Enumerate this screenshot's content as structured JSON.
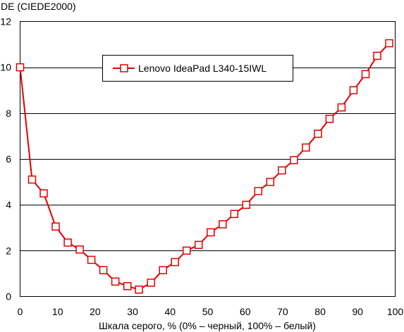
{
  "chart_data": {
    "type": "line",
    "title": "",
    "ylabel": "DE (CIEDE2000)",
    "xlabel": "Шкала серого, % (0% – черный, 100% – белый)",
    "xlim": [
      0,
      100
    ],
    "ylim": [
      0,
      12
    ],
    "xticks": [
      0,
      10,
      20,
      30,
      40,
      50,
      60,
      70,
      80,
      90,
      100
    ],
    "yticks": [
      0,
      2,
      4,
      6,
      8,
      10,
      12
    ],
    "grid": "horizontal",
    "legend_position": "top-center",
    "series": [
      {
        "name": "Lenovo IdeaPad L340-15IWL",
        "color": "#e00000",
        "marker": "square",
        "x": [
          0,
          3.2,
          6.3,
          9.5,
          12.7,
          15.9,
          19.0,
          22.2,
          25.4,
          28.6,
          31.7,
          34.9,
          38.1,
          41.3,
          44.4,
          47.6,
          50.8,
          54.0,
          57.1,
          60.3,
          63.5,
          66.7,
          69.8,
          73.0,
          76.2,
          79.4,
          82.5,
          85.7,
          88.9,
          92.1,
          95.2,
          98.4
        ],
        "y": [
          10.0,
          5.1,
          4.5,
          3.05,
          2.35,
          2.05,
          1.6,
          1.15,
          0.65,
          0.45,
          0.3,
          0.6,
          1.15,
          1.5,
          2.0,
          2.25,
          2.8,
          3.15,
          3.6,
          4.0,
          4.6,
          5.0,
          5.5,
          5.95,
          6.5,
          7.1,
          7.75,
          8.25,
          9.0,
          9.7,
          10.5,
          11.05
        ]
      }
    ]
  }
}
